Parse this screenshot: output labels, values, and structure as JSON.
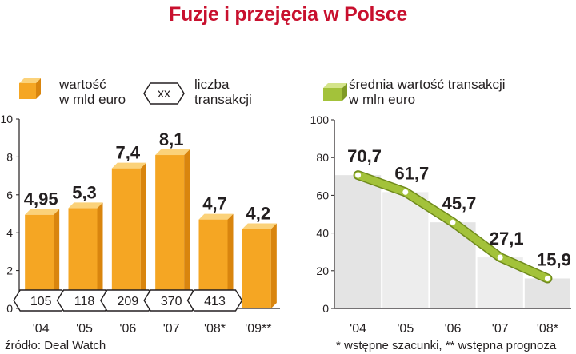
{
  "title": "Fuzje i przejęcia w Polsce",
  "legend": {
    "value_line1": "wartość",
    "value_line2": "w mld euro",
    "count_badge": "xx",
    "count_line1": "liczba",
    "count_line2": "transakcji",
    "avg_line1": "średnia wartość transakcji",
    "avg_line2": "w mln euro"
  },
  "source": "źródło: Deal Watch",
  "footnote": "* wstępne szacunki, ** wstępna prognoza",
  "colors": {
    "title": "#c8102e",
    "bar_front": "#f5a623",
    "bar_side": "#d9850e",
    "bar_top": "#fbd27a",
    "line": "#a3c23a",
    "area": "#e4e4e4"
  },
  "chart_data": [
    {
      "type": "bar",
      "title": "",
      "categories": [
        "'04",
        "'05",
        "'06",
        "'07",
        "'08*",
        "'09**"
      ],
      "series": [
        {
          "name": "wartość w mld euro",
          "values": [
            4.95,
            5.3,
            7.4,
            8.1,
            4.7,
            4.2
          ],
          "labels": [
            "4,95",
            "5,3",
            "7,4",
            "8,1",
            "4,7",
            "4,2"
          ]
        },
        {
          "name": "liczba transakcji",
          "values": [
            105,
            118,
            209,
            370,
            413,
            null
          ]
        }
      ],
      "yticks": [
        "0",
        "2",
        "4",
        "6",
        "8",
        "10"
      ],
      "ylim": [
        0,
        10
      ],
      "grid": false
    },
    {
      "type": "line",
      "title": "",
      "categories": [
        "'04",
        "'05",
        "'06",
        "'07",
        "'08*"
      ],
      "series": [
        {
          "name": "średnia wartość transakcji w mln euro",
          "values": [
            70.7,
            61.7,
            45.7,
            27.1,
            15.9
          ],
          "labels": [
            "70,7",
            "61,7",
            "45,7",
            "27,1",
            "15,9"
          ]
        }
      ],
      "yticks": [
        "0",
        "20",
        "40",
        "60",
        "80",
        "100"
      ],
      "ylim": [
        0,
        100
      ],
      "grid": false
    }
  ]
}
